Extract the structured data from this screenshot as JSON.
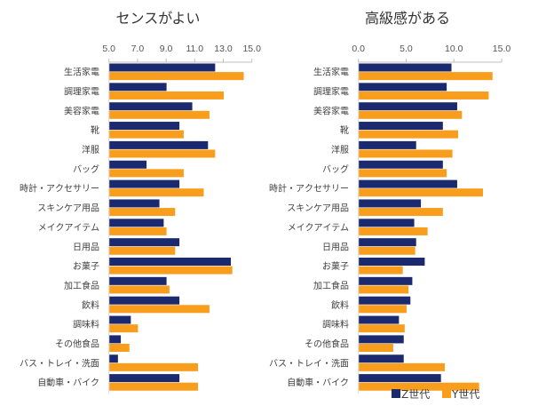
{
  "colors": {
    "z": "#1b2a6e",
    "y": "#f99d1c",
    "axis": "#bfbfbf"
  },
  "legend": [
    {
      "name": "Z世代",
      "color": "#1b2a6e"
    },
    {
      "name": "Y世代",
      "color": "#f99d1c"
    }
  ],
  "chart_data": [
    {
      "type": "bar",
      "orientation": "horizontal",
      "title": "センスがよい",
      "xlim": [
        5.0,
        15.0
      ],
      "xticks": [
        "5.0",
        "7.0",
        "9.0",
        "11.0",
        "13.0",
        "15.0"
      ],
      "xtick_values": [
        5,
        7,
        9,
        11,
        13,
        15
      ],
      "axis_position": "top",
      "grid": false,
      "categories": [
        "生活家電",
        "調理家電",
        "美容家電",
        "靴",
        "洋服",
        "バッグ",
        "時計・アクセサリー",
        "スキンケア用品",
        "メイクアイテム",
        "日用品",
        "お菓子",
        "加工食品",
        "飲料",
        "調味料",
        "その他食品",
        "バス・トレイ・洗面",
        "自動車・バイク"
      ],
      "series": [
        {
          "name": "Z世代",
          "values": [
            12.4,
            9.0,
            10.8,
            9.9,
            11.9,
            7.6,
            9.9,
            8.5,
            8.8,
            9.9,
            13.5,
            9.0,
            9.9,
            6.5,
            5.8,
            5.6,
            9.9
          ]
        },
        {
          "name": "Y世代",
          "values": [
            14.4,
            13.0,
            12.0,
            10.2,
            12.4,
            10.2,
            11.6,
            9.6,
            9.0,
            9.6,
            13.6,
            9.2,
            12.0,
            7.0,
            6.4,
            11.2,
            11.2
          ]
        }
      ]
    },
    {
      "type": "bar",
      "orientation": "horizontal",
      "title": "高級感がある",
      "xlim": [
        0.0,
        15.0
      ],
      "xticks": [
        "0.0",
        "5.0",
        "10.0",
        "15.0"
      ],
      "xtick_values": [
        0,
        5,
        10,
        15
      ],
      "axis_position": "top",
      "grid": false,
      "categories": [
        "生活家電",
        "調理家電",
        "美容家電",
        "靴",
        "洋服",
        "バッグ",
        "時計・アクセサリー",
        "スキンケア用品",
        "メイクアイテム",
        "日用品",
        "お菓子",
        "加工食品",
        "飲料",
        "調味料",
        "その他食品",
        "バス・トレイ・洗面",
        "自動車・バイク"
      ],
      "series": [
        {
          "name": "Z世代",
          "values": [
            9.7,
            9.2,
            10.3,
            8.8,
            6.0,
            8.8,
            10.3,
            6.5,
            5.8,
            6.0,
            6.9,
            5.6,
            5.4,
            4.2,
            4.7,
            4.7,
            8.6
          ]
        },
        {
          "name": "Y世代",
          "values": [
            14.0,
            13.6,
            10.8,
            10.4,
            9.8,
            9.2,
            13.0,
            8.8,
            7.2,
            5.9,
            4.6,
            5.2,
            5.0,
            4.8,
            3.6,
            9.0,
            12.6
          ]
        }
      ],
      "legend_position": "bottom-right"
    }
  ]
}
